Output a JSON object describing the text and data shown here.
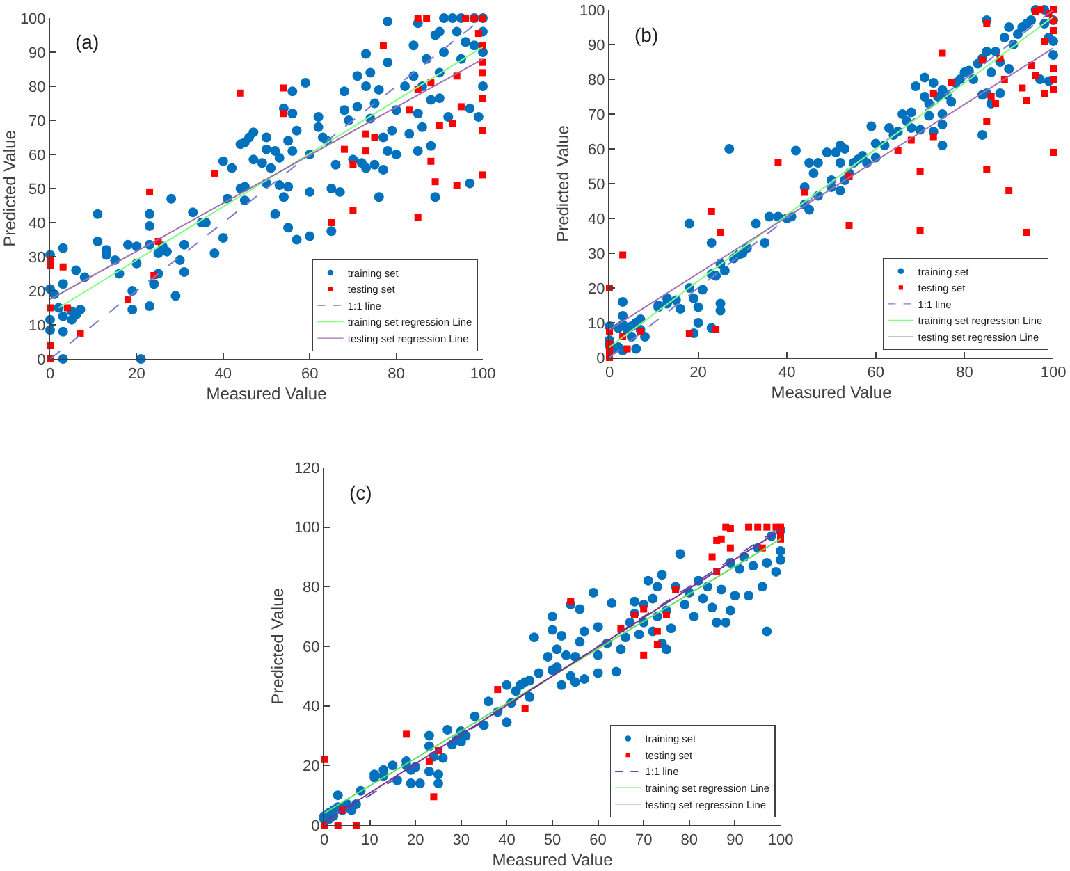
{
  "chart_data": [
    {
      "type": "scatter",
      "annotations": [
        "(a)"
      ],
      "xlabel": "Measured Value",
      "ylabel": "Predicted Value",
      "xlim": [
        0,
        100
      ],
      "ylim": [
        0,
        100
      ],
      "xticks": [
        0,
        20,
        40,
        60,
        80,
        100
      ],
      "yticks": [
        0,
        10,
        20,
        30,
        40,
        50,
        60,
        70,
        80,
        90,
        100
      ],
      "legend": "bottom right",
      "series": [
        {
          "name": "training set",
          "type": "scatter",
          "marker": "circle",
          "color": "#0072bd",
          "x": [
            0,
            0,
            0,
            0,
            1,
            2,
            3,
            3,
            3,
            3,
            3,
            5,
            5,
            6,
            6,
            7,
            8,
            11,
            11,
            13,
            13,
            15,
            16,
            18,
            19,
            19,
            20,
            20,
            21,
            23,
            23,
            23,
            23,
            24,
            25,
            25,
            26,
            27,
            28,
            29,
            30,
            31,
            31,
            33,
            35,
            36,
            38,
            40,
            40,
            41,
            42,
            44,
            45,
            46,
            47,
            44,
            45,
            45,
            47,
            49,
            50,
            50,
            50,
            51,
            52,
            52,
            53,
            53,
            54,
            54,
            55,
            55,
            55,
            56,
            56,
            56,
            57,
            57,
            59,
            60,
            60,
            60,
            62,
            62,
            63,
            64,
            65,
            65,
            66,
            67,
            68,
            68,
            69,
            70,
            71,
            71,
            72,
            73,
            73,
            73,
            74,
            74,
            75,
            75,
            76,
            76,
            77,
            77,
            78,
            78,
            78,
            79,
            80,
            80,
            82,
            83,
            84,
            84,
            85,
            85,
            85,
            86,
            86,
            87,
            88,
            88,
            89,
            89,
            90,
            90,
            90,
            91,
            92,
            93,
            94,
            95,
            95,
            96,
            97,
            97,
            98,
            99,
            100,
            100,
            100,
            100,
            91,
            98
          ],
          "values": [
            30.5,
            20.5,
            11.5,
            8.5,
            19,
            15,
            22,
            32.5,
            12.5,
            8,
            0,
            14,
            11.5,
            26,
            13,
            14.5,
            24,
            42.5,
            34.5,
            32,
            30.5,
            29,
            25,
            33.5,
            20,
            14.5,
            33,
            28,
            0,
            42.5,
            39,
            33.5,
            15.5,
            22,
            25,
            31,
            33,
            31.5,
            47,
            18.5,
            29,
            33.5,
            25.5,
            43,
            40,
            40,
            31,
            58,
            35.5,
            47,
            56,
            63,
            63.5,
            65,
            66.5,
            50,
            50.5,
            46.5,
            58.5,
            57.5,
            65,
            61.5,
            51.5,
            56,
            61,
            42.5,
            59,
            51,
            47.5,
            73.5,
            64,
            50.5,
            38.5,
            61,
            78.5,
            72,
            67,
            35,
            81,
            60,
            49,
            36,
            71,
            68,
            65,
            64,
            50,
            37.5,
            57,
            49,
            73,
            78.5,
            70,
            58.5,
            83,
            74,
            57.5,
            89.5,
            80,
            56,
            84,
            70.5,
            75,
            57,
            79,
            47.5,
            55.5,
            65,
            99,
            87,
            61,
            67,
            60,
            73,
            80,
            66,
            92,
            83,
            72,
            61,
            98.5,
            80,
            68,
            88,
            76,
            62.5,
            95,
            47.5,
            96,
            84,
            76.5,
            90,
            71,
            100,
            96,
            100,
            88,
            93,
            73.5,
            51.5,
            100,
            71,
            96,
            80,
            90,
            100,
            100,
            92
          ]
        },
        {
          "name": "testing set",
          "type": "scatter",
          "marker": "square",
          "color": "#ff0000",
          "x": [
            0,
            0,
            0,
            0,
            0,
            3,
            4,
            7,
            18,
            23,
            24,
            25,
            38,
            44,
            54,
            54,
            65,
            68,
            70,
            70,
            73,
            73,
            75,
            77,
            83,
            85,
            85,
            85,
            87,
            88,
            89,
            90,
            93,
            94,
            94,
            95,
            96,
            98,
            99,
            100,
            100,
            100,
            100,
            100,
            100,
            100,
            88
          ],
          "values": [
            29,
            27.5,
            15,
            4,
            0,
            27,
            15,
            7.5,
            17.5,
            49,
            24.5,
            34.5,
            54.5,
            78,
            79.5,
            72,
            40,
            61.5,
            57,
            43.5,
            66,
            61,
            65,
            92,
            73,
            100,
            79,
            41.5,
            100,
            58,
            52,
            68.5,
            69,
            51,
            83,
            74,
            100,
            100,
            95.5,
            100,
            92,
            84,
            76.5,
            67,
            54,
            87,
            81
          ]
        },
        {
          "name": "1:1 line",
          "type": "line",
          "marker": "none",
          "line_style": "dashed",
          "color": "#7b7bd1",
          "x": [
            0,
            100
          ],
          "values": [
            0,
            100
          ]
        },
        {
          "name": "training set regression Line",
          "type": "line",
          "marker": "none",
          "line_style": "solid",
          "color": "#80ff80",
          "x": [
            2,
            100
          ],
          "values": [
            15,
            91.5
          ]
        },
        {
          "name": "testing set regression Line",
          "type": "line",
          "marker": "none",
          "line_style": "solid",
          "color": "#a070b0",
          "x": [
            0,
            100
          ],
          "values": [
            17.5,
            88
          ]
        }
      ]
    },
    {
      "type": "scatter",
      "annotations": [
        "(b)"
      ],
      "xlabel": "Measured Value",
      "ylabel": "Predicted Value",
      "xlim": [
        0,
        100
      ],
      "ylim": [
        0,
        100
      ],
      "xticks": [
        0,
        20,
        40,
        60,
        80,
        100
      ],
      "yticks": [
        0,
        10,
        20,
        30,
        40,
        50,
        60,
        70,
        80,
        90,
        100
      ],
      "legend": "bottom right",
      "series": [
        {
          "name": "training set",
          "type": "scatter",
          "marker": "circle",
          "color": "#0072bd",
          "x": [
            0,
            0,
            0,
            1,
            2,
            2,
            3,
            3,
            3,
            3,
            4,
            5,
            5,
            6,
            6,
            7,
            7,
            8,
            11,
            11,
            13,
            13,
            15,
            16,
            18,
            18,
            19,
            19,
            20,
            20,
            21,
            23,
            23,
            23,
            24,
            25,
            25,
            25,
            26,
            27,
            28,
            29,
            30,
            31,
            33,
            35,
            36,
            38,
            40,
            41,
            42,
            44,
            44,
            45,
            45,
            46,
            47,
            47,
            49,
            50,
            50,
            51,
            52,
            52,
            52,
            53,
            53,
            54,
            55,
            56,
            57,
            58,
            59,
            60,
            60,
            62,
            63,
            64,
            65,
            66,
            67,
            68,
            68,
            69,
            70,
            71,
            71,
            72,
            72,
            73,
            73,
            74,
            75,
            75,
            75,
            75,
            76,
            77,
            78,
            79,
            80,
            81,
            82,
            83,
            84,
            84,
            84,
            85,
            85,
            85,
            86,
            86,
            87,
            88,
            88,
            89,
            90,
            90,
            91,
            92,
            93,
            94,
            95,
            96,
            97,
            98,
            98,
            99,
            99,
            100,
            100,
            100
          ],
          "values": [
            9,
            5,
            3.5,
            2.5,
            3,
            8.5,
            16,
            12,
            9.5,
            2,
            8,
            9,
            6,
            2.5,
            10,
            11,
            8,
            6,
            14.5,
            15,
            17,
            15.5,
            16.5,
            14,
            38.5,
            20,
            17,
            7,
            14.5,
            10,
            19.5,
            33,
            24,
            8.5,
            23.5,
            27,
            15.5,
            13.5,
            25,
            60,
            28.5,
            29.5,
            30,
            31.5,
            38.5,
            33,
            40.5,
            40.5,
            40,
            40.5,
            59.5,
            49,
            44,
            56,
            42.5,
            53,
            56,
            46.5,
            59,
            51,
            49,
            59,
            61,
            56,
            48,
            60,
            51,
            53,
            56,
            57,
            58,
            56,
            66.5,
            61.5,
            57.5,
            61,
            66,
            64,
            65,
            70,
            68,
            70.5,
            66,
            78,
            65.5,
            75,
            80.5,
            73,
            69.5,
            79,
            65,
            75,
            77,
            70,
            67,
            61,
            75.5,
            73.5,
            79,
            80,
            82,
            82.5,
            80,
            84.5,
            86,
            75.5,
            64,
            97,
            88,
            76,
            82,
            73,
            88,
            76,
            85,
            92,
            95,
            83,
            90,
            93,
            95,
            96,
            97,
            100,
            80,
            96,
            100,
            79.5,
            92,
            97,
            91,
            87
          ]
        },
        {
          "name": "testing set",
          "type": "scatter",
          "marker": "square",
          "color": "#ff0000",
          "x": [
            0,
            0,
            0,
            0,
            0,
            3,
            3,
            4,
            7,
            18,
            23,
            24,
            25,
            38,
            44,
            54,
            54,
            65,
            68,
            70,
            70,
            73,
            73,
            75,
            77,
            84,
            85,
            85,
            85,
            86,
            87,
            88,
            89,
            90,
            93,
            94,
            94,
            95,
            96,
            97,
            98,
            99,
            100,
            100,
            100,
            100,
            100,
            100,
            100,
            98,
            96
          ],
          "values": [
            20,
            7.5,
            4,
            2,
            0,
            29.5,
            6,
            2.5,
            7.5,
            7,
            42,
            8,
            36,
            56,
            47.5,
            52,
            38,
            59.5,
            62.5,
            53.5,
            36.5,
            63.5,
            76,
            87.5,
            79,
            85.5,
            96,
            68,
            54,
            75,
            73,
            86,
            80,
            48,
            77.5,
            74,
            36,
            84,
            99.5,
            100,
            91,
            99,
            59,
            77,
            80,
            83,
            94,
            97,
            100,
            76,
            81
          ]
        },
        {
          "name": "1:1 line",
          "type": "line",
          "marker": "none",
          "line_style": "dashed",
          "color": "#7b7bd1",
          "x": [
            0,
            100
          ],
          "values": [
            0,
            100
          ]
        },
        {
          "name": "training set regression Line",
          "type": "line",
          "marker": "none",
          "line_style": "solid",
          "color": "#80ff80",
          "x": [
            0,
            100
          ],
          "values": [
            3,
            98
          ]
        },
        {
          "name": "testing set regression Line",
          "type": "line",
          "marker": "none",
          "line_style": "solid",
          "color": "#a070b0",
          "x": [
            0,
            100
          ],
          "values": [
            8,
            89
          ]
        }
      ]
    },
    {
      "type": "scatter",
      "annotations": [
        "(c)"
      ],
      "xlabel": "Measured Value",
      "ylabel": "Predicted Value",
      "xlim": [
        0,
        100
      ],
      "ylim": [
        0,
        120
      ],
      "xticks": [
        0,
        10,
        20,
        30,
        40,
        50,
        60,
        70,
        80,
        90,
        100
      ],
      "yticks": [
        0,
        20,
        40,
        60,
        80,
        100,
        120
      ],
      "legend": "bottom right",
      "series": [
        {
          "name": "training set",
          "type": "scatter",
          "marker": "circle",
          "color": "#0072bd",
          "x": [
            0,
            0,
            1,
            1,
            2,
            2,
            3,
            3,
            4,
            5,
            6,
            7,
            8,
            11,
            11,
            13,
            13,
            15,
            16,
            18,
            18,
            19,
            19,
            20,
            21,
            23,
            23,
            23,
            24,
            25,
            25,
            26,
            27,
            28,
            29,
            30,
            30,
            31,
            33,
            35,
            36,
            38,
            40,
            40,
            41,
            42,
            43,
            44,
            45,
            45,
            46,
            47,
            49,
            50,
            50,
            50,
            51,
            51,
            52,
            52,
            53,
            54,
            54,
            55,
            55,
            56,
            56,
            57,
            57,
            59,
            60,
            60,
            60,
            62,
            63,
            64,
            65,
            66,
            67,
            68,
            68,
            69,
            70,
            70,
            71,
            72,
            72,
            73,
            73,
            74,
            74,
            75,
            75,
            76,
            77,
            78,
            79,
            80,
            81,
            82,
            83,
            84,
            85,
            86,
            87,
            88,
            89,
            89,
            90,
            91,
            92,
            93,
            94,
            95,
            96,
            97,
            97,
            98,
            99,
            100,
            100,
            100
          ],
          "values": [
            2,
            3,
            4,
            2,
            5,
            3,
            6,
            10,
            5,
            7,
            5,
            7,
            11.5,
            17,
            16,
            18.5,
            16.5,
            20,
            15,
            21.5,
            20,
            14,
            18.5,
            19.5,
            14,
            30,
            26.5,
            18,
            23,
            17,
            14,
            22.5,
            32,
            27,
            28.5,
            28,
            31.5,
            30,
            36.5,
            33.5,
            41.5,
            38,
            34.5,
            47,
            41,
            45,
            47,
            48,
            48.5,
            43,
            63,
            51,
            56.5,
            70,
            65.5,
            52,
            59,
            53,
            63.5,
            47,
            57,
            74,
            50,
            56.5,
            48,
            72.5,
            61.5,
            65,
            49,
            78,
            57,
            51,
            66.5,
            61,
            74.5,
            51.5,
            59,
            63,
            68,
            75,
            71,
            64,
            74,
            68,
            82,
            76,
            65,
            80,
            70,
            84,
            61,
            59,
            72,
            66,
            80,
            91,
            74,
            78,
            70,
            82,
            76,
            80,
            73,
            68,
            79,
            68,
            72,
            88,
            77,
            86,
            90,
            77,
            87,
            93,
            80,
            65,
            88,
            97,
            85,
            92,
            89,
            99
          ]
        },
        {
          "name": "testing set",
          "type": "scatter",
          "marker": "square",
          "color": "#ff0000",
          "x": [
            0,
            0,
            3,
            4,
            7,
            18,
            23,
            24,
            25,
            38,
            44,
            54,
            65,
            68,
            70,
            70,
            73,
            73,
            75,
            77,
            85,
            86,
            87,
            88,
            89,
            89,
            93,
            95,
            97,
            99,
            100,
            100,
            100,
            86,
            96
          ],
          "values": [
            22,
            0,
            0,
            5,
            0,
            30.5,
            21.5,
            9.5,
            25,
            45.5,
            39,
            75,
            66,
            70.5,
            57,
            72.5,
            65,
            60.5,
            70.5,
            79,
            90,
            95.5,
            96,
            100,
            99.5,
            93,
            100,
            100,
            100,
            100,
            100,
            98,
            96,
            85,
            93
          ]
        },
        {
          "name": "1:1 line",
          "type": "line",
          "marker": "none",
          "line_style": "dashed",
          "color": "#5050b0",
          "x": [
            0,
            100
          ],
          "values": [
            0,
            100
          ]
        },
        {
          "name": "training set regression Line",
          "type": "line",
          "marker": "none",
          "line_style": "solid",
          "color": "#60e060",
          "x": [
            0,
            100
          ],
          "values": [
            4,
            96
          ]
        },
        {
          "name": "testing set regression Line",
          "type": "line",
          "marker": "none",
          "line_style": "solid",
          "color": "#7e2f8e",
          "x": [
            0,
            100
          ],
          "values": [
            1,
            99
          ]
        }
      ]
    }
  ]
}
